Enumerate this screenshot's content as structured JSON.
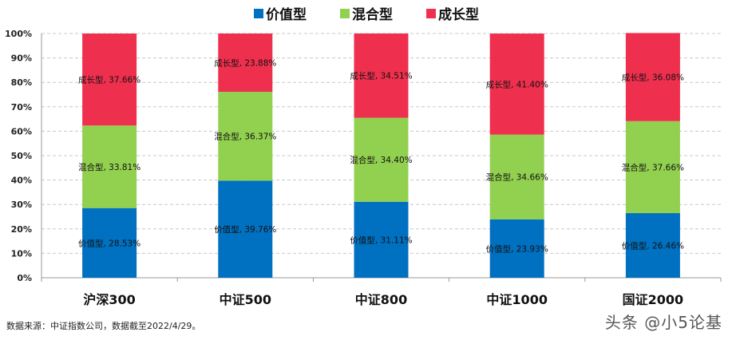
{
  "chart_data": {
    "type": "bar",
    "stacked": true,
    "categories": [
      "沪深300",
      "中证500",
      "中证800",
      "中证1000",
      "国证2000"
    ],
    "series": [
      {
        "name": "价值型",
        "color": "#0070C0",
        "values": [
          28.53,
          39.76,
          31.11,
          23.93,
          26.46
        ]
      },
      {
        "name": "混合型",
        "color": "#92D050",
        "values": [
          33.81,
          36.37,
          34.4,
          34.66,
          37.66
        ]
      },
      {
        "name": "成长型",
        "color": "#EE304E",
        "values": [
          37.66,
          23.88,
          34.51,
          41.4,
          36.08
        ]
      }
    ],
    "ylim": [
      0,
      100
    ],
    "yticks": [
      "0%",
      "10%",
      "20%",
      "30%",
      "40%",
      "50%",
      "60%",
      "70%",
      "80%",
      "90%",
      "100%"
    ],
    "grid": true,
    "legend": "top"
  },
  "source": "数据来源：中证指数公司，数据截至2022/4/29。",
  "watermark": "头条 @小5论基"
}
